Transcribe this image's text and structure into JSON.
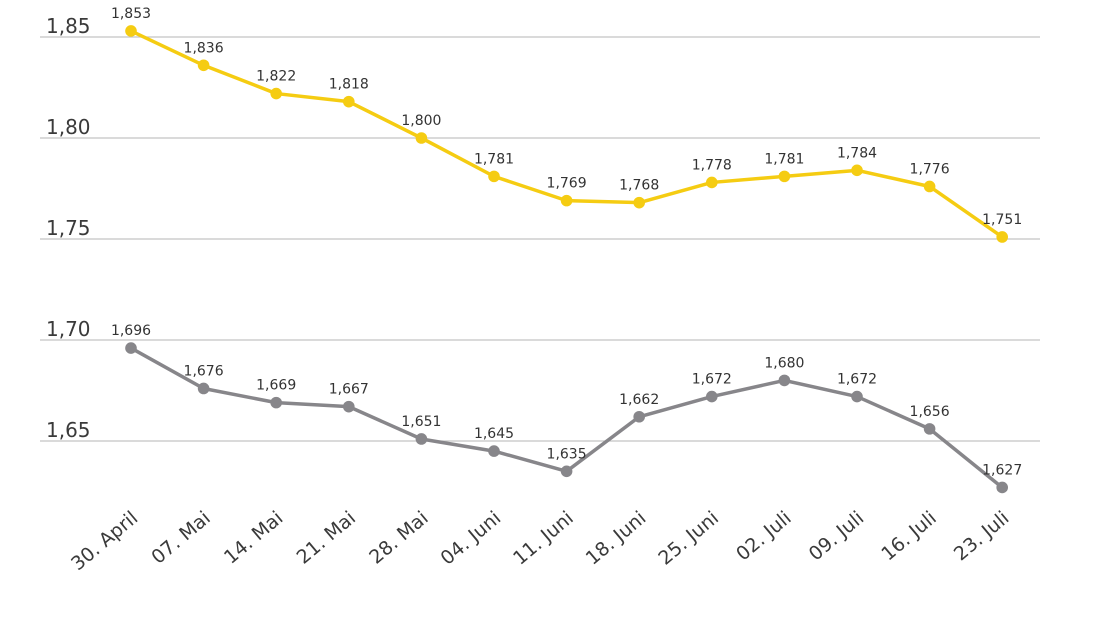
{
  "chart_data": {
    "type": "line",
    "title": "",
    "xlabel": "",
    "ylabel": "",
    "ylim": [
      1.6,
      1.85
    ],
    "yticks": [
      1.65,
      1.7,
      1.75,
      1.8,
      1.85
    ],
    "ytick_labels": [
      "1,65",
      "1,70",
      "1,75",
      "1,80",
      "1,85"
    ],
    "grid": true,
    "categories": [
      "30. April",
      "07. Mai",
      "14. Mai",
      "21. Mai",
      "28. Mai",
      "04. Juni",
      "11. Juni",
      "18. Juni",
      "25. Juni",
      "02. Juli",
      "09. Juli",
      "16. Juli",
      "23. Juli"
    ],
    "series": [
      {
        "color": "#f5cc12",
        "values": [
          1.853,
          1.836,
          1.822,
          1.818,
          1.8,
          1.781,
          1.769,
          1.768,
          1.778,
          1.781,
          1.784,
          1.776,
          1.751
        ],
        "labels": [
          "1,853",
          "1,836",
          "1,822",
          "1,818",
          "1,800",
          "1,781",
          "1,769",
          "1,768",
          "1,778",
          "1,781",
          "1,784",
          "1,776",
          "1,751"
        ]
      },
      {
        "color": "#87868a",
        "values": [
          1.696,
          1.676,
          1.669,
          1.667,
          1.651,
          1.645,
          1.635,
          1.662,
          1.672,
          1.68,
          1.672,
          1.656,
          1.627
        ],
        "labels": [
          "1,696",
          "1,676",
          "1,669",
          "1,667",
          "1,651",
          "1,645",
          "1,635",
          "1,662",
          "1,672",
          "1,680",
          "1,672",
          "1,656",
          "1,627"
        ]
      }
    ]
  }
}
